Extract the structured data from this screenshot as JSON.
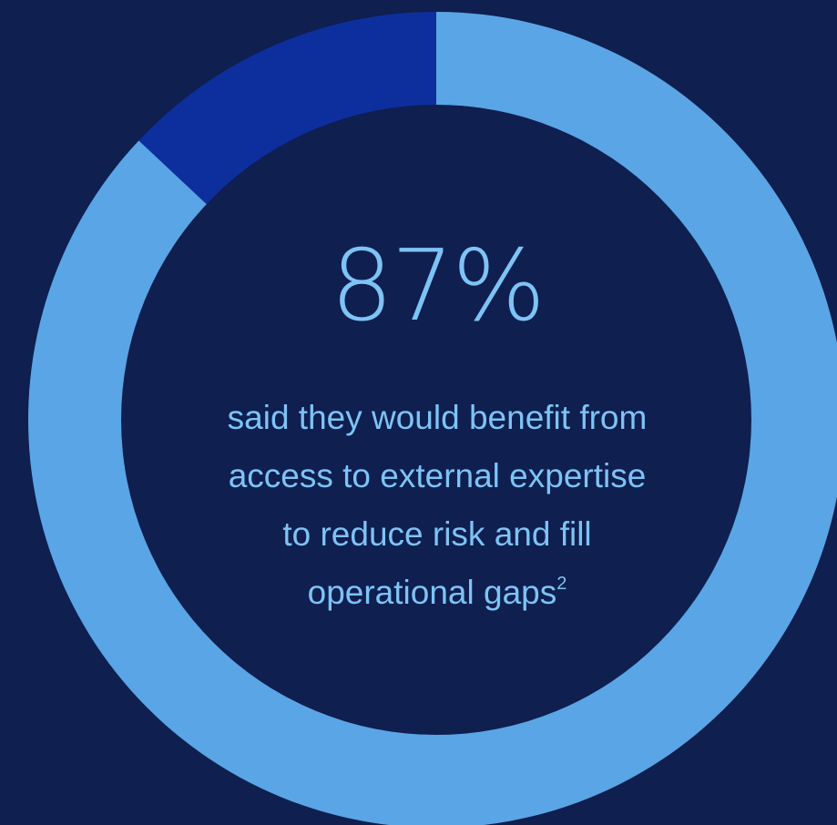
{
  "chart_data": {
    "type": "pie",
    "donut": true,
    "slices": [
      {
        "label": "",
        "value": 87,
        "color": "#5aa5e5"
      },
      {
        "label": "",
        "value": 13,
        "color": "#0d2f9e"
      }
    ],
    "start": "top",
    "direction": "clockwise",
    "center_value": "87%",
    "center_text_lines": [
      "said they would benefit from",
      "access to external expertise",
      "to reduce risk and fill",
      "operational gaps"
    ],
    "footnote_marker": "2"
  },
  "colors": {
    "background": "#0e1f50",
    "hole": "#0e1f50",
    "text": "#7ec3f5"
  }
}
